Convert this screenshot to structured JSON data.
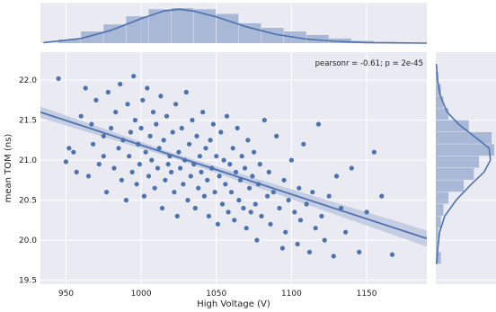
{
  "chart_data": {
    "type": "scatter",
    "title": "",
    "xlabel": "High Voltage (V)",
    "ylabel": "mean TOM (ns)",
    "xlim": [
      933,
      1190
    ],
    "ylim": [
      19.45,
      22.35
    ],
    "x_ticks": [
      950,
      1000,
      1050,
      1100,
      1150
    ],
    "y_ticks": [
      19.5,
      20.0,
      20.5,
      21.0,
      21.5,
      22.0
    ],
    "grid": true,
    "annotation": "pearsonr = -0.61; p = 2e-45",
    "annotation_placement": "top-right",
    "colors": {
      "points": "#4c72b0",
      "panel_background": "#eaeaf2",
      "grid": "#ffffff",
      "regression_band": "#b4c0dc"
    },
    "regression": {
      "x": [
        933,
        1190
      ],
      "y": [
        21.6,
        20.02
      ],
      "band_halfwidth_start": 0.07,
      "band_halfwidth_mid": 0.03,
      "band_halfwidth_end": 0.1
    },
    "marginal_x_hist": {
      "bin_edges": [
        945,
        960,
        975,
        990,
        1005,
        1020,
        1035,
        1050,
        1065,
        1080,
        1095,
        1110,
        1125,
        1140,
        1155,
        1170
      ],
      "counts": [
        3,
        10,
        16,
        23,
        29,
        30,
        29,
        25,
        17,
        13,
        10,
        7,
        4,
        2,
        1
      ],
      "kde_x": [
        935,
        960,
        980,
        1000,
        1015,
        1025,
        1035,
        1050,
        1070,
        1090,
        1110,
        1130,
        1150,
        1170,
        1190
      ],
      "kde_y": [
        0.5,
        4,
        11,
        21,
        27.5,
        29,
        27.5,
        22.5,
        14,
        7.5,
        3.5,
        1.5,
        0.5,
        0.2,
        0
      ]
    },
    "marginal_y_hist": {
      "bin_edges": [
        19.7,
        19.85,
        20.0,
        20.15,
        20.3,
        20.45,
        20.6,
        20.75,
        20.9,
        21.05,
        21.2,
        21.35,
        21.5,
        21.65,
        21.8,
        21.95,
        22.1
      ],
      "counts": [
        2,
        1,
        1,
        2,
        3,
        5,
        11,
        15,
        17,
        23,
        22,
        13,
        5,
        3,
        2,
        1
      ],
      "kde_y": [
        19.7,
        19.9,
        20.1,
        20.3,
        20.5,
        20.7,
        20.85,
        21.0,
        21.15,
        21.3,
        21.45,
        21.6,
        21.8,
        22.0,
        22.2
      ],
      "kde_x": [
        0.3,
        0.8,
        1.5,
        3.5,
        8,
        14,
        19,
        21.5,
        21,
        15,
        9,
        4.5,
        1.8,
        0.7,
        0.2
      ]
    },
    "points": {
      "x": [
        945,
        950,
        952,
        955,
        957,
        960,
        963,
        965,
        967,
        968,
        970,
        972,
        975,
        975,
        977,
        978,
        980,
        982,
        983,
        985,
        986,
        987,
        988,
        990,
        991,
        992,
        993,
        994,
        995,
        996,
        997,
        998,
        999,
        1000,
        1001,
        1002,
        1003,
        1004,
        1005,
        1006,
        1007,
        1008,
        1009,
        1010,
        1011,
        1012,
        1013,
        1014,
        1015,
        1016,
        1017,
        1018,
        1019,
        1020,
        1021,
        1022,
        1023,
        1024,
        1025,
        1026,
        1027,
        1028,
        1029,
        1030,
        1031,
        1032,
        1033,
        1034,
        1035,
        1036,
        1037,
        1038,
        1039,
        1040,
        1041,
        1042,
        1043,
        1044,
        1045,
        1046,
        1047,
        1048,
        1049,
        1050,
        1051,
        1052,
        1053,
        1054,
        1055,
        1056,
        1057,
        1058,
        1059,
        1060,
        1061,
        1062,
        1063,
        1064,
        1065,
        1066,
        1067,
        1068,
        1069,
        1070,
        1071,
        1072,
        1073,
        1074,
        1075,
        1076,
        1077,
        1078,
        1079,
        1080,
        1082,
        1084,
        1085,
        1086,
        1088,
        1090,
        1092,
        1094,
        1095,
        1096,
        1098,
        1100,
        1102,
        1104,
        1105,
        1106,
        1108,
        1110,
        1112,
        1114,
        1116,
        1118,
        1120,
        1122,
        1125,
        1128,
        1130,
        1133,
        1136,
        1140,
        1145,
        1150,
        1155,
        1160,
        1167
      ],
      "y": [
        22.02,
        20.98,
        21.15,
        21.1,
        20.85,
        21.55,
        21.9,
        20.8,
        21.45,
        21.2,
        21.75,
        20.95,
        21.05,
        21.3,
        20.6,
        21.85,
        21.4,
        20.9,
        21.6,
        21.15,
        21.95,
        20.75,
        21.25,
        20.5,
        21.7,
        21.05,
        21.35,
        20.85,
        22.05,
        21.5,
        20.7,
        21.2,
        20.95,
        21.4,
        21.75,
        20.55,
        21.1,
        21.9,
        20.8,
        21.3,
        21.0,
        21.6,
        20.65,
        21.45,
        20.9,
        21.15,
        21.8,
        20.4,
        21.25,
        20.75,
        21.55,
        20.95,
        21.05,
        20.85,
        21.35,
        20.6,
        21.7,
        20.3,
        21.1,
        20.9,
        21.4,
        20.7,
        21.0,
        21.85,
        20.5,
        21.2,
        20.8,
        21.5,
        20.95,
        20.4,
        21.3,
        20.65,
        21.05,
        20.85,
        21.6,
        20.55,
        21.15,
        20.75,
        20.3,
        21.25,
        20.9,
        21.45,
        20.6,
        21.05,
        20.2,
        20.8,
        21.35,
        20.45,
        21.0,
        20.7,
        21.55,
        20.35,
        20.95,
        20.6,
        21.15,
        20.25,
        20.85,
        21.4,
        20.5,
        20.75,
        21.05,
        20.4,
        20.9,
        20.15,
        21.25,
        20.65,
        20.35,
        20.8,
        21.1,
        20.45,
        20.0,
        20.7,
        20.95,
        20.3,
        21.5,
        20.55,
        20.85,
        20.2,
        20.6,
        21.3,
        20.4,
        19.9,
        20.75,
        20.1,
        20.5,
        21.0,
        20.35,
        19.95,
        20.65,
        20.25,
        21.2,
        20.45,
        19.85,
        20.6,
        20.15,
        21.45,
        20.3,
        20.0,
        20.55,
        19.8,
        20.8,
        20.4,
        20.1,
        20.9,
        19.85,
        20.35,
        21.1,
        20.55,
        19.82
      ]
    }
  }
}
